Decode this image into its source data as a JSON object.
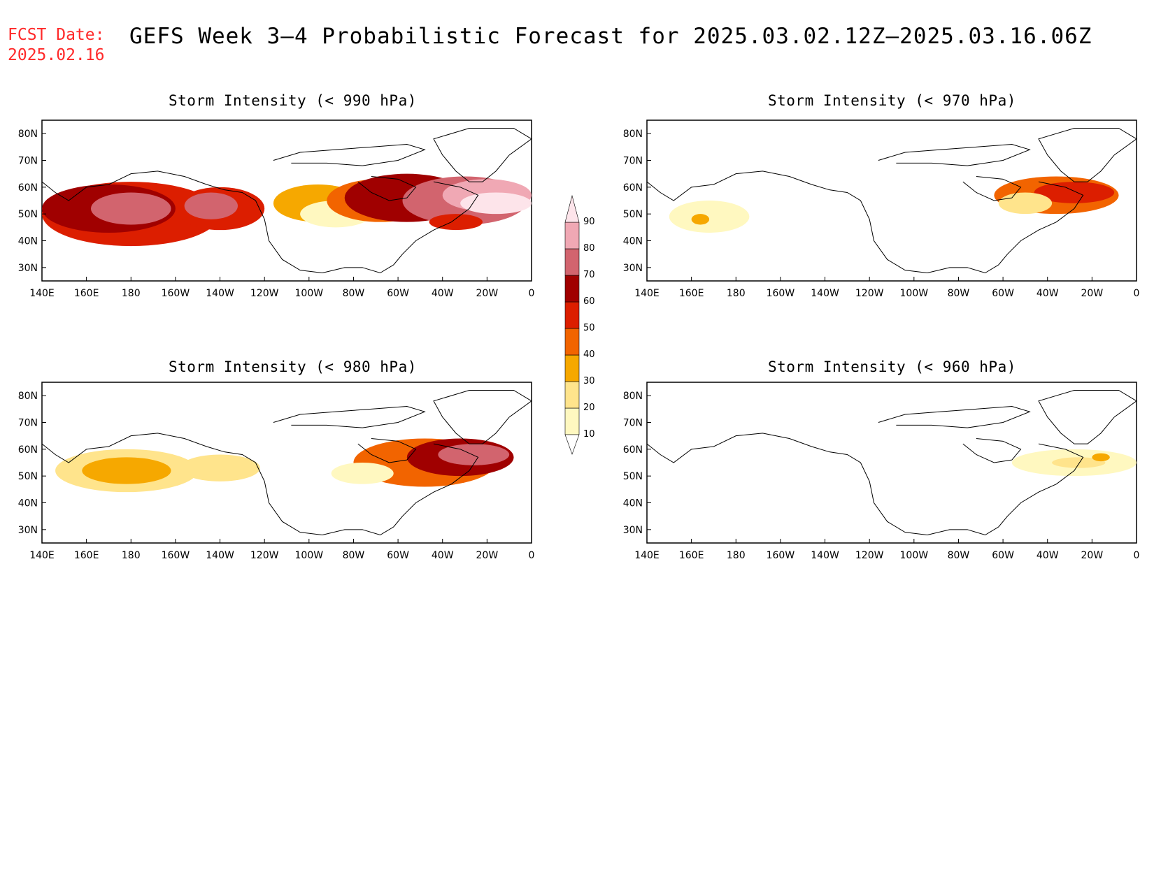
{
  "header": {
    "fcst_label": "FCST Date:",
    "fcst_date": "2025.02.16",
    "title": "GEFS Week 3–4 Probabilistic Forecast for 2025.03.02.12Z–2025.03.16.06Z"
  },
  "axes": {
    "x_ticks": [
      "140E",
      "160E",
      "180",
      "160W",
      "140W",
      "120W",
      "100W",
      "80W",
      "60W",
      "40W",
      "20W",
      "0"
    ],
    "y_ticks": [
      "80N",
      "70N",
      "60N",
      "50N",
      "40N",
      "30N"
    ]
  },
  "colorbar": {
    "levels": [
      "10",
      "20",
      "30",
      "40",
      "50",
      "60",
      "70",
      "80",
      "90"
    ],
    "colors": [
      "#fff8c0",
      "#ffe48c",
      "#f6a800",
      "#f26400",
      "#dc1e00",
      "#a00000",
      "#d2646e",
      "#f0a8b4",
      "#fde4ea"
    ]
  },
  "panels": [
    {
      "id": "p990",
      "title": "Storm Intensity (< 990 hPa)"
    },
    {
      "id": "p970",
      "title": "Storm Intensity (< 970 hPa)"
    },
    {
      "id": "p980",
      "title": "Storm Intensity (< 980 hPa)"
    },
    {
      "id": "p960",
      "title": "Storm Intensity (< 960 hPa)"
    }
  ]
}
